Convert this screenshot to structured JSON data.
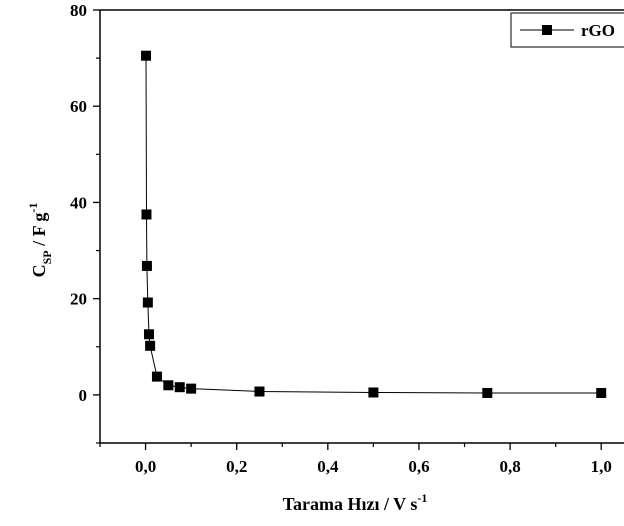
{
  "chart_data": {
    "type": "scatter",
    "title": "",
    "xlabel": {
      "main": "Tarama Hızı / V s",
      "sup": "-1"
    },
    "ylabel": {
      "c": "C",
      "sub": "SP",
      "rest": " / F g",
      "sup": "-1"
    },
    "xlim": [
      -0.1,
      1.05
    ],
    "ylim": [
      -10,
      80
    ],
    "xticks": [
      0.0,
      0.2,
      0.4,
      0.6,
      0.8,
      1.0
    ],
    "xtick_labels": [
      "0,0",
      "0,2",
      "0,4",
      "0,6",
      "0,8",
      "1,0"
    ],
    "yticks": [
      0,
      20,
      40,
      60,
      80
    ],
    "ytick_labels": [
      "0",
      "20",
      "40",
      "60",
      "80"
    ],
    "grid": false,
    "legend_position": "top-right",
    "series": [
      {
        "name": "rGO",
        "marker": "square",
        "connected": true,
        "color": "#000000",
        "x": [
          0.001,
          0.002,
          0.003,
          0.005,
          0.0075,
          0.01,
          0.025,
          0.05,
          0.075,
          0.1,
          0.25,
          0.5,
          0.75,
          1.0
        ],
        "y": [
          70.5,
          37.5,
          26.8,
          19.2,
          12.6,
          10.2,
          3.8,
          2.0,
          1.6,
          1.3,
          0.7,
          0.5,
          0.4,
          0.4
        ]
      }
    ]
  }
}
